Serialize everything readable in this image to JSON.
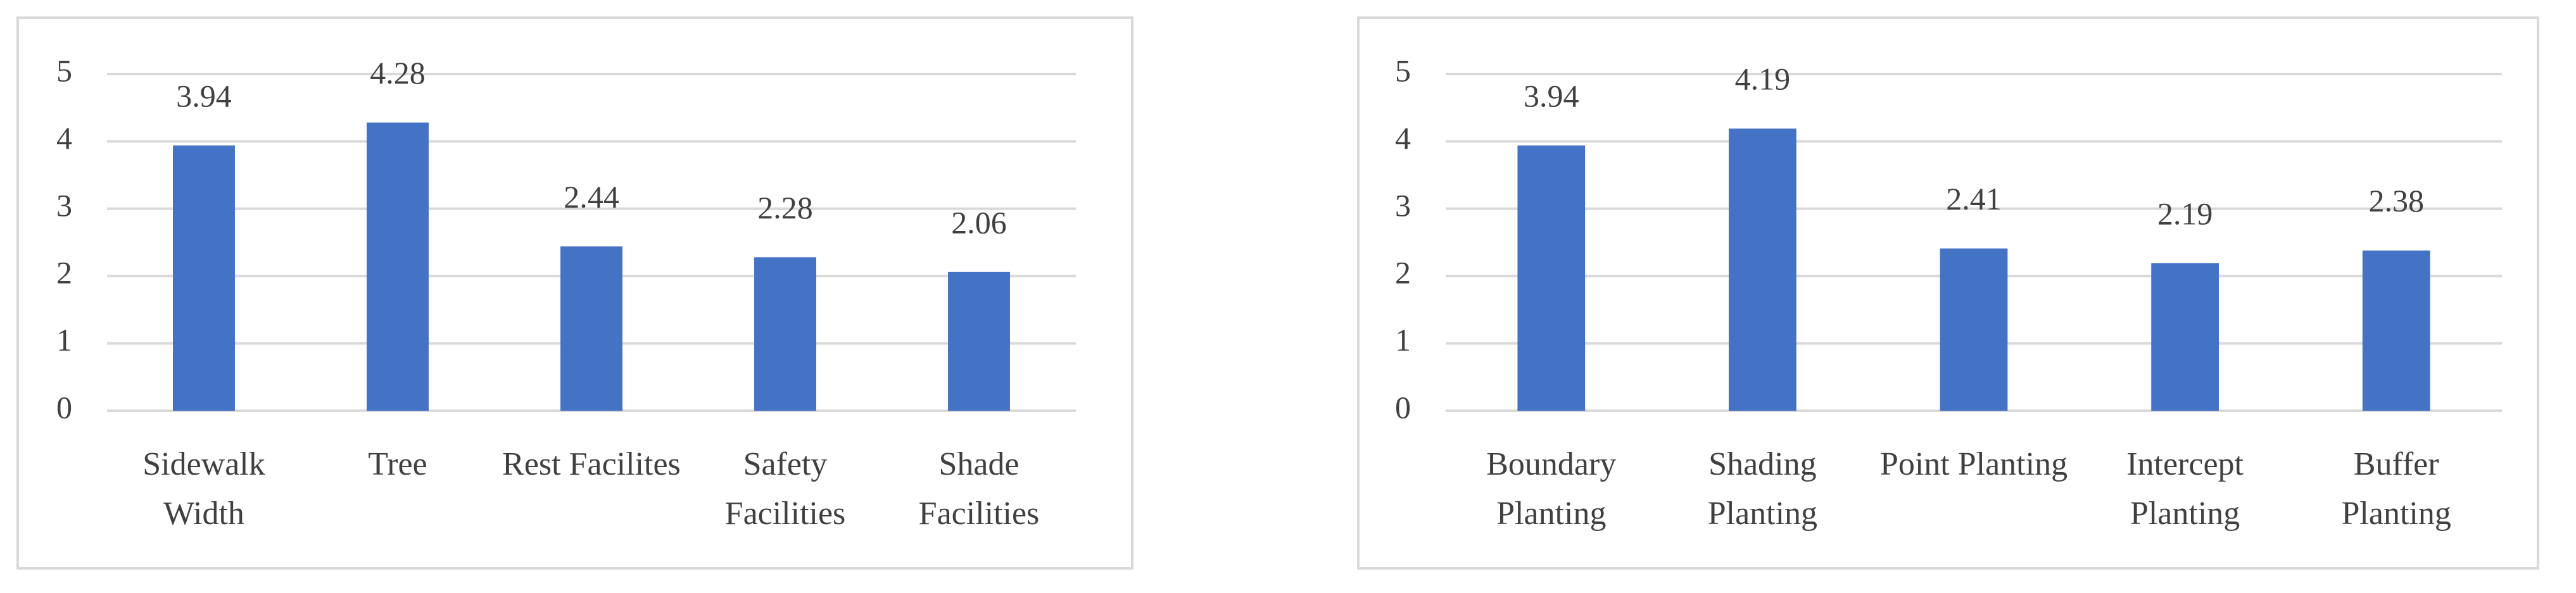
{
  "chart_data": [
    {
      "type": "bar",
      "categories": [
        "Sidewalk Width",
        "Tree",
        "Rest Facilites",
        "Safety Facilities",
        "Shade Facilities"
      ],
      "values": [
        3.94,
        4.28,
        2.44,
        2.28,
        2.06
      ],
      "color": "#4472c4",
      "ylim": [
        0,
        5
      ],
      "yticks": [
        0,
        1,
        2,
        3,
        4,
        5
      ],
      "grid": true
    },
    {
      "type": "bar",
      "categories": [
        "Boundary Planting",
        "Shading Planting",
        "Point Planting",
        "Intercept Planting",
        "Buffer Planting"
      ],
      "values": [
        3.94,
        4.19,
        2.41,
        2.19,
        2.38
      ],
      "color": "#4472c4",
      "ylim": [
        0,
        5
      ],
      "yticks": [
        0,
        1,
        2,
        3,
        4,
        5
      ],
      "grid": true
    }
  ]
}
